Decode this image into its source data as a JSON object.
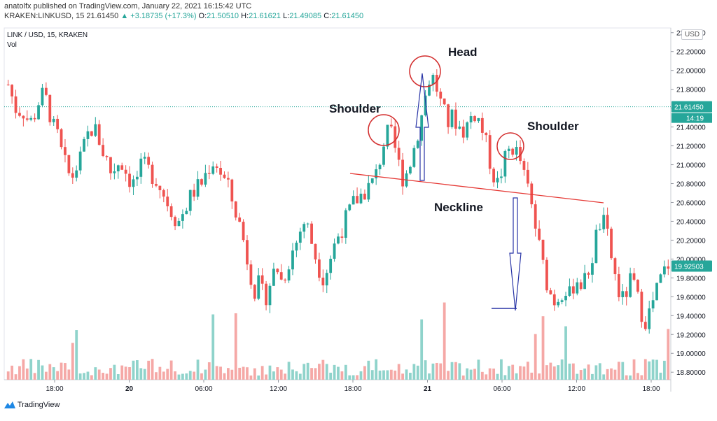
{
  "header": {
    "line1": "anatolfx published on TradingView.com, January 22, 2021 16:15:42 UTC",
    "symbol": "KRAKEN:LINKUSD, 15",
    "last": "21.61450",
    "change": "+3.18735 (+17.3%)",
    "o_label": "O:",
    "o_val": "21.50510",
    "h_label": "H:",
    "h_val": "21.61621",
    "l_label": "L:",
    "l_val": "21.49085",
    "c_label": "C:",
    "c_val": "21.61450"
  },
  "symbol_line": "LINK / USD, 15, KRAKEN",
  "vol_label": "Vol",
  "currency_badge": "USD",
  "footer": {
    "brand": "TradingView"
  },
  "colors": {
    "up": "#26a69a",
    "down": "#ef5350",
    "vol_up": "#8fd3cb",
    "vol_down": "#f5a8a6",
    "annotation_circle": "#d32f2f",
    "arrow": "#2834a6",
    "neckline": "#e53935",
    "price_line": "#26a69a"
  },
  "annotations": {
    "head": "Head",
    "left_shoulder": "Shoulder",
    "right_shoulder": "Shoulder",
    "neckline": "Neckline"
  },
  "chart_data": {
    "type": "candlestick",
    "title": "LINK / USD, 15, KRAKEN",
    "y_ticks": [
      "18.80000",
      "19.00000",
      "19.20000",
      "19.40000",
      "19.60000",
      "19.80000",
      "20.00000",
      "20.20000",
      "20.40000",
      "20.60000",
      "20.80000",
      "21.00000",
      "21.20000",
      "21.40000",
      "21.60000",
      "21.80000",
      "22.00000",
      "22.20000",
      "22.40000"
    ],
    "ylim": [
      18.72,
      22.45
    ],
    "x_ticks": [
      "18:00",
      "20",
      "06:00",
      "12:00",
      "18:00",
      "21",
      "06:00",
      "12:00",
      "18:00"
    ],
    "last_price_label": "21.61450",
    "countdown_label": "14:19",
    "current_marker_label": "19.92503",
    "close_path": [
      21.85,
      21.7,
      21.55,
      21.6,
      21.5,
      21.45,
      21.55,
      21.7,
      21.75,
      21.6,
      21.4,
      21.3,
      21.1,
      20.95,
      20.85,
      20.95,
      21.05,
      21.2,
      21.35,
      21.4,
      21.3,
      21.15,
      21.05,
      20.9,
      21.0,
      21.05,
      20.95,
      20.85,
      20.8,
      20.9,
      21.0,
      20.95,
      20.9,
      20.85,
      20.75,
      20.65,
      20.55,
      20.45,
      20.4,
      20.5,
      20.6,
      20.7,
      20.75,
      20.8,
      20.9,
      21.0,
      21.05,
      20.95,
      20.85,
      20.75,
      20.6,
      20.45,
      20.3,
      20.05,
      19.85,
      19.65,
      19.75,
      19.55,
      19.7,
      19.85,
      19.9,
      19.75,
      19.9,
      20.05,
      20.15,
      20.3,
      20.4,
      20.3,
      20.1,
      19.95,
      19.8,
      19.9,
      20.05,
      20.2,
      20.3,
      20.4,
      20.5,
      20.6,
      20.65,
      20.7,
      20.75,
      20.8,
      20.9,
      21.1,
      21.3,
      21.35,
      21.2,
      21.0,
      20.85,
      20.95,
      21.1,
      21.3,
      21.5,
      21.75,
      21.95,
      21.9,
      21.7,
      21.55,
      21.45,
      21.5,
      21.45,
      21.35,
      21.4,
      21.5,
      21.55,
      21.45,
      21.3,
      21.1,
      20.9,
      20.8,
      20.95,
      21.1,
      21.2,
      21.15,
      21.05,
      20.85,
      20.7,
      20.45,
      20.2,
      19.95,
      19.75,
      19.6,
      19.55,
      19.65,
      19.7,
      19.6,
      19.75,
      19.8,
      19.7,
      19.85,
      20.0,
      20.25,
      20.4,
      20.35,
      20.1,
      19.85,
      19.65,
      19.55,
      19.7,
      19.8,
      19.6,
      19.45,
      19.35,
      19.45,
      19.6,
      19.75,
      19.85,
      19.95
    ]
  }
}
